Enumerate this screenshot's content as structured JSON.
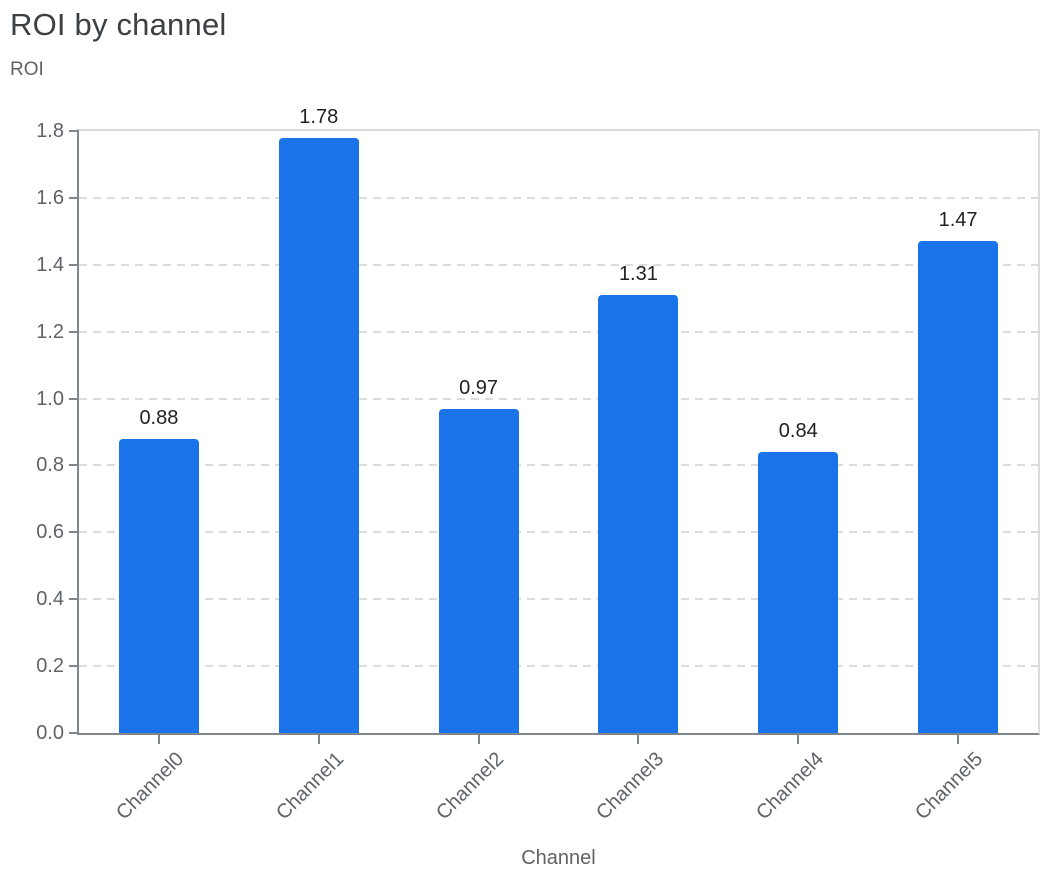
{
  "chart_data": {
    "type": "bar",
    "title": "ROI by channel",
    "ylabel": "ROI",
    "xlabel": "Channel",
    "categories": [
      "Channel0",
      "Channel1",
      "Channel2",
      "Channel3",
      "Channel4",
      "Channel5"
    ],
    "values": [
      0.88,
      1.78,
      0.97,
      1.31,
      0.84,
      1.47
    ],
    "ylim": [
      0,
      1.8
    ],
    "ytick_step": 0.2,
    "ytick_labels": [
      "0.0",
      "0.2",
      "0.4",
      "0.6",
      "0.8",
      "1.0",
      "1.2",
      "1.4",
      "1.6",
      "1.8"
    ],
    "value_label_format": "2-decimals",
    "grid": "horizontal-dashed",
    "legend": "none",
    "x_tick_label_rotation_deg": -45,
    "colors": {
      "bar": "#1a73e8",
      "axis": "#80868b",
      "grid": "#dadce0",
      "tick_label": "#5f6368",
      "value_label": "#202124",
      "title": "#3c4043",
      "background": "#ffffff"
    }
  }
}
